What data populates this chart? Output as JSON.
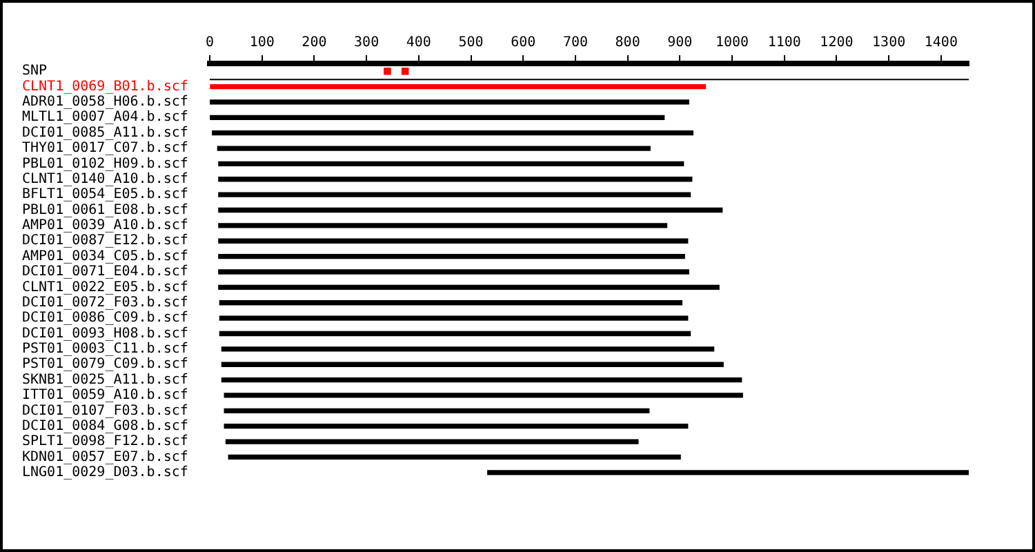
{
  "chart_data": {
    "type": "bar",
    "orientation": "horizontal",
    "xlim": [
      0,
      1453
    ],
    "xticks": [
      0,
      100,
      200,
      300,
      400,
      500,
      600,
      700,
      800,
      900,
      1000,
      1100,
      1200,
      1300,
      1400
    ],
    "grid": false,
    "legend": false,
    "categories": [
      "SNP",
      "CLNT1_0069_B01.b.scf",
      "ADR01_0058_H06.b.scf",
      "MLTL1_0007_A04.b.scf",
      "DCI01_0085_A11.b.scf",
      "THY01_0017_C07.b.scf",
      "PBL01_0102_H09.b.scf",
      "CLNT1_0140_A10.b.scf",
      "BFLT1_0054_E05.b.scf",
      "PBL01_0061_E08.b.scf",
      "AMP01_0039_A10.b.scf",
      "DCI01_0087_E12.b.scf",
      "AMP01_0034_C05.b.scf",
      "DCI01_0071_E04.b.scf",
      "CLNT1_0022_E05.b.scf",
      "DCI01_0072_F03.b.scf",
      "DCI01_0086_C09.b.scf",
      "DCI01_0093_H08.b.scf",
      "PST01_0003_C11.b.scf",
      "PST01_0079_C09.b.scf",
      "SKNB1_0025_A11.b.scf",
      "ITT01_0059_A10.b.scf",
      "DCI01_0107_F03.b.scf",
      "DCI01_0084_G08.b.scf",
      "SPLT1_0098_F12.b.scf",
      "KDN01_0057_E07.b.scf",
      "LNG01_0029_D03.b.scf"
    ],
    "series": [
      {
        "base": [
          null,
          0,
          1,
          1,
          5,
          15,
          17,
          17,
          17,
          17,
          17,
          17,
          17,
          17,
          17,
          19,
          19,
          19,
          23,
          23,
          23,
          28,
          28,
          28,
          31,
          36,
          532
        ],
        "colors": [
          "#000000",
          "#ff0000",
          "#000000",
          "#000000",
          "#000000",
          "#000000",
          "#000000",
          "#000000",
          "#000000",
          "#000000",
          "#000000",
          "#000000",
          "#000000",
          "#000000",
          "#000000",
          "#000000",
          "#000000",
          "#000000",
          "#000000",
          "#000000",
          "#000000",
          "#000000",
          "#000000",
          "#000000",
          "#000000",
          "#000000",
          "#000000"
        ],
        "values": [
          null,
          949,
          916,
          869,
          920,
          828,
          890,
          906,
          903,
          964,
          858,
          898,
          892,
          900,
          958,
          885,
          896,
          901,
          942,
          960,
          995,
          992,
          813,
          887,
          789,
          865,
          921
        ]
      },
      {
        "type": "scatter",
        "color": "#ff0000",
        "marker": "square",
        "x": [
          "SNP",
          "SNP"
        ],
        "values": [
          340,
          374
        ]
      }
    ]
  }
}
